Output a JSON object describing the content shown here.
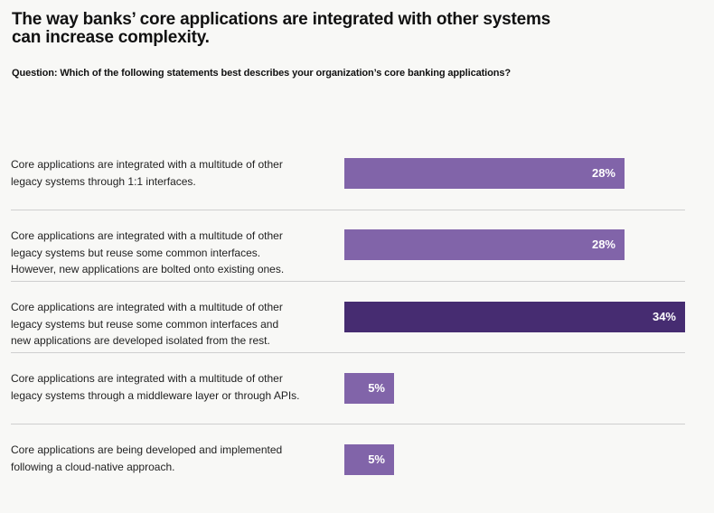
{
  "title_line1": "The way banks’ core applications are integrated with other systems",
  "title_line2": "can increase complexity.",
  "question": "Question: Which of the following statements best describes your organization’s core banking applications?",
  "chart_data": {
    "type": "bar",
    "orientation": "horizontal",
    "categories": [
      [
        "Core applications are integrated with a multitude of other",
        "legacy systems through 1:1 interfaces."
      ],
      [
        "Core applications are integrated with a multitude of other",
        "legacy systems but reuse some common interfaces.",
        "However, new applications are bolted onto existing ones."
      ],
      [
        "Core applications are integrated with a multitude of other",
        "legacy systems but reuse some common interfaces and",
        "new applications are developed isolated from the rest."
      ],
      [
        "Core applications are integrated with a multitude of other",
        "legacy systems through a middleware layer or through APIs."
      ],
      [
        "Core applications are being developed and implemented",
        "following a cloud-native approach."
      ]
    ],
    "values": [
      28,
      28,
      34,
      5,
      5
    ],
    "value_labels": [
      "28%",
      "28%",
      "34%",
      "5%",
      "5%"
    ],
    "highlight_index": 2,
    "colors": {
      "bar": "#8164a9",
      "highlight": "#462c71"
    },
    "xlim": [
      0,
      34
    ]
  }
}
